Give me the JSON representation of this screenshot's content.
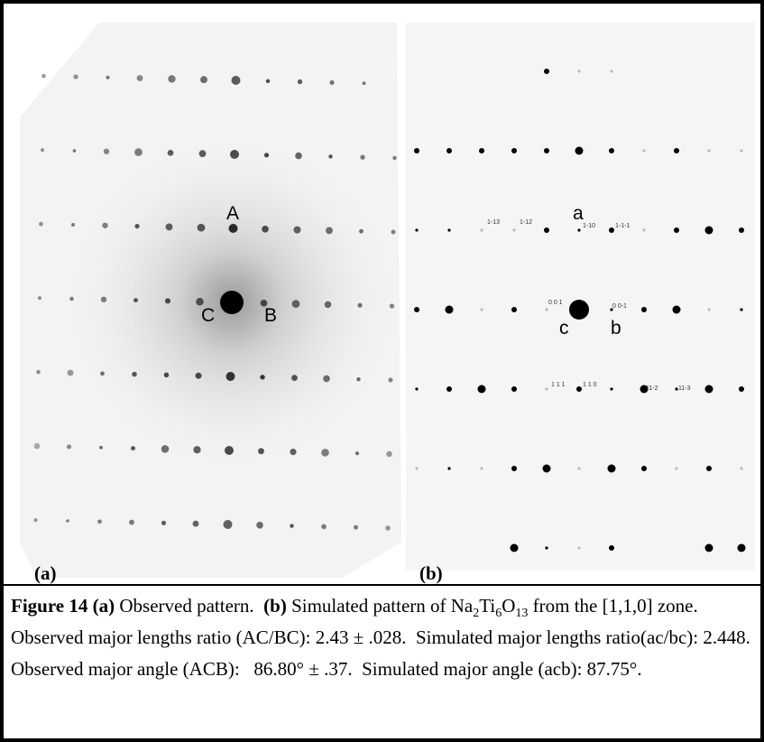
{
  "panel_a": {
    "label": "(a)",
    "points": [
      "A",
      "B",
      "C"
    ]
  },
  "panel_b": {
    "label": "(b)",
    "points": [
      "a",
      "b",
      "c"
    ],
    "spot_labels": [
      "1-13",
      "1-12",
      "1-10",
      "1-1-1",
      "0 0 1",
      "0 0-1",
      "1 1 1",
      "1 1 0",
      "11-2",
      "11-3"
    ]
  },
  "caption": {
    "segments": [
      "Figure 14",
      " (a)",
      " Observed pattern.  ",
      "(b)",
      " Simulated pattern of Na",
      "2",
      "Ti",
      "6",
      "O",
      "13",
      " from the [1,1,0] zone.  Observed major lengths ratio (AC/BC): 2.43 ± .028.  Simulated major lengths ratio(ac/bc): 2.448.  Observed major angle (ACB):   86.80° ± .37.  Simulated major angle (acb): 87.75°."
    ]
  }
}
